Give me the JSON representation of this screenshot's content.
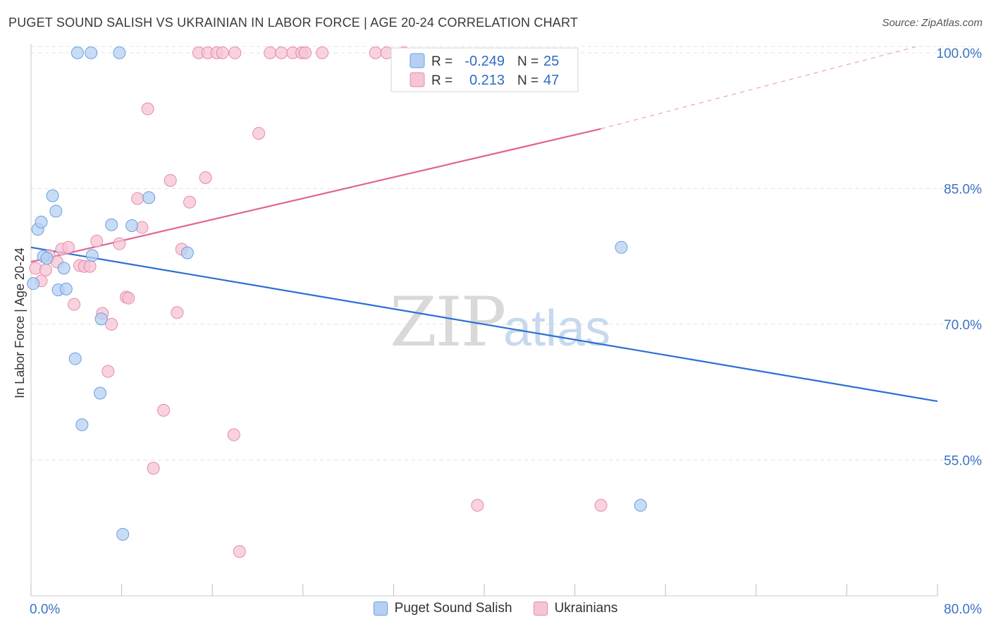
{
  "header": {
    "title": "PUGET SOUND SALISH VS UKRAINIAN IN LABOR FORCE | AGE 20-24 CORRELATION CHART",
    "source": "Source: ZipAtlas.com"
  },
  "watermark": {
    "zip": "ZIP",
    "atlas": "atlas"
  },
  "chart_data": {
    "type": "scatter",
    "title": "PUGET SOUND SALISH VS UKRAINIAN IN LABOR FORCE | AGE 20-24 CORRELATION CHART",
    "xlabel": "",
    "ylabel": "In Labor Force | Age 20-24",
    "xlim": [
      0,
      80
    ],
    "ylim": [
      40,
      101
    ],
    "x_tick_labels": [
      "0.0%",
      "80.0%"
    ],
    "y_ticks": [
      55,
      70,
      85,
      100
    ],
    "y_tick_labels": [
      "55.0%",
      "70.0%",
      "85.0%",
      "100.0%"
    ],
    "grid": true,
    "legend_position": "top-center",
    "series": [
      {
        "name": "Puget Sound Salish",
        "color": "#6a9fe0",
        "fill": "#b6d0f3",
        "line_color": "#2a6fd4",
        "stats": {
          "r_label": "R =",
          "r": "-0.249",
          "n_label": "N =",
          "n": "25"
        },
        "points": [
          [
            0.2,
            74.5
          ],
          [
            0.6,
            80.5
          ],
          [
            0.9,
            81.3
          ],
          [
            1.1,
            77.5
          ],
          [
            1.4,
            77.3
          ],
          [
            1.9,
            84.2
          ],
          [
            2.2,
            82.5
          ],
          [
            2.4,
            73.8
          ],
          [
            2.9,
            76.2
          ],
          [
            3.1,
            73.9
          ],
          [
            3.9,
            66.2
          ],
          [
            4.1,
            100.0
          ],
          [
            4.5,
            58.9
          ],
          [
            5.3,
            100.0
          ],
          [
            5.4,
            77.6
          ],
          [
            6.1,
            62.4
          ],
          [
            6.2,
            70.6
          ],
          [
            7.1,
            81.0
          ],
          [
            7.8,
            100.0
          ],
          [
            8.1,
            46.8
          ],
          [
            8.9,
            80.9
          ],
          [
            10.4,
            84.0
          ],
          [
            13.8,
            77.9
          ],
          [
            52.1,
            78.5
          ],
          [
            53.8,
            50.0
          ]
        ],
        "trend": {
          "x": [
            0,
            80
          ],
          "y": [
            78.5,
            61.5
          ]
        }
      },
      {
        "name": "Ukrainians",
        "color": "#e88aa8",
        "fill": "#f6c4d4",
        "line_color": "#e0648f",
        "stats": {
          "r_label": "R =",
          "r": "0.213",
          "n_label": "N =",
          "n": "47"
        },
        "points": [
          [
            0.4,
            76.2
          ],
          [
            0.9,
            74.8
          ],
          [
            1.3,
            76.0
          ],
          [
            1.6,
            77.6
          ],
          [
            2.3,
            76.9
          ],
          [
            2.7,
            78.3
          ],
          [
            3.3,
            78.5
          ],
          [
            3.8,
            72.2
          ],
          [
            4.3,
            76.5
          ],
          [
            4.7,
            76.4
          ],
          [
            5.2,
            76.4
          ],
          [
            5.8,
            79.2
          ],
          [
            6.3,
            71.2
          ],
          [
            6.8,
            64.8
          ],
          [
            7.1,
            70.0
          ],
          [
            7.8,
            78.9
          ],
          [
            8.4,
            73.0
          ],
          [
            8.6,
            72.9
          ],
          [
            9.4,
            83.9
          ],
          [
            9.8,
            80.7
          ],
          [
            10.3,
            93.8
          ],
          [
            10.8,
            54.1
          ],
          [
            11.7,
            60.5
          ],
          [
            12.3,
            85.9
          ],
          [
            12.9,
            71.3
          ],
          [
            13.3,
            78.3
          ],
          [
            14.0,
            83.5
          ],
          [
            14.8,
            100.0
          ],
          [
            15.4,
            86.2
          ],
          [
            15.6,
            100.0
          ],
          [
            16.4,
            100.0
          ],
          [
            16.9,
            100.0
          ],
          [
            17.9,
            57.8
          ],
          [
            18.0,
            100.0
          ],
          [
            18.4,
            44.9
          ],
          [
            20.1,
            91.1
          ],
          [
            21.1,
            100.0
          ],
          [
            22.1,
            100.0
          ],
          [
            23.1,
            100.0
          ],
          [
            23.9,
            100.0
          ],
          [
            24.2,
            100.0
          ],
          [
            25.7,
            100.0
          ],
          [
            30.4,
            100.0
          ],
          [
            31.4,
            100.0
          ],
          [
            32.9,
            100.0
          ],
          [
            39.4,
            50.0
          ],
          [
            50.3,
            50.0
          ]
        ],
        "trend": {
          "x": [
            0,
            50.3
          ],
          "y": [
            76.9,
            91.6
          ]
        },
        "trend_extension": {
          "x": [
            50.3,
            78.5
          ],
          "y": [
            91.6,
            100.8
          ]
        }
      }
    ]
  }
}
